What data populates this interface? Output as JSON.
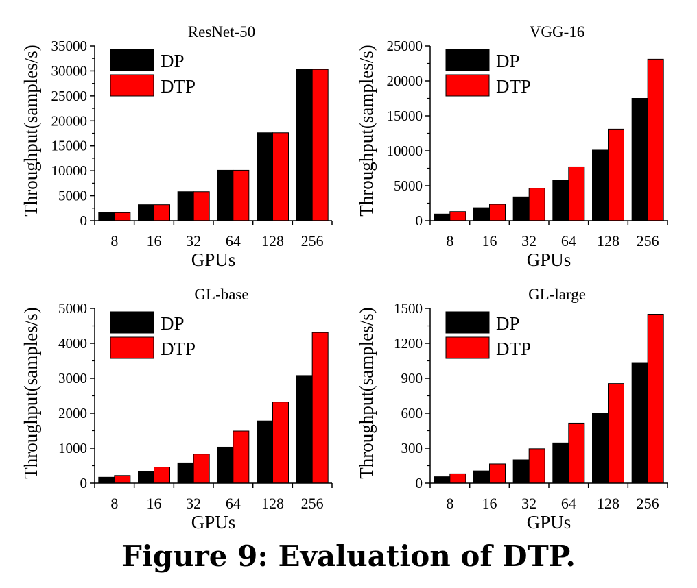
{
  "caption": "Figure 9: Evaluation of DTP.",
  "colors": {
    "DP": "#000000",
    "DTP": "#ff0000"
  },
  "chart_data": [
    {
      "type": "bar",
      "title": "ResNet-50",
      "xlabel": "GPUs",
      "ylabel": "Throughput(samples/s)",
      "categories": [
        "8",
        "16",
        "32",
        "64",
        "128",
        "256"
      ],
      "ylim": [
        0,
        35000
      ],
      "yticks": [
        0,
        5000,
        10000,
        15000,
        20000,
        25000,
        30000,
        35000
      ],
      "legend": "top-left",
      "series": [
        {
          "name": "DP",
          "values": [
            1600,
            3200,
            5800,
            10100,
            17600,
            30300
          ]
        },
        {
          "name": "DTP",
          "values": [
            1600,
            3200,
            5800,
            10100,
            17600,
            30300
          ]
        }
      ]
    },
    {
      "type": "bar",
      "title": "VGG-16",
      "xlabel": "GPUs",
      "ylabel": "Throughput(samples/s)",
      "categories": [
        "8",
        "16",
        "32",
        "64",
        "128",
        "256"
      ],
      "ylim": [
        0,
        25000
      ],
      "yticks": [
        0,
        5000,
        10000,
        15000,
        20000,
        25000
      ],
      "legend": "top-left",
      "series": [
        {
          "name": "DP",
          "values": [
            950,
            1850,
            3400,
            5800,
            10100,
            17500
          ]
        },
        {
          "name": "DTP",
          "values": [
            1300,
            2350,
            4650,
            7700,
            13100,
            23100
          ]
        }
      ]
    },
    {
      "type": "bar",
      "title": "GL-base",
      "xlabel": "GPUs",
      "ylabel": "Throughput(samples/s)",
      "categories": [
        "8",
        "16",
        "32",
        "64",
        "128",
        "256"
      ],
      "ylim": [
        0,
        5000
      ],
      "yticks": [
        0,
        1000,
        2000,
        3000,
        4000,
        5000
      ],
      "legend": "top-left",
      "series": [
        {
          "name": "DP",
          "values": [
            170,
            330,
            580,
            1030,
            1780,
            3080
          ]
        },
        {
          "name": "DTP",
          "values": [
            220,
            460,
            830,
            1490,
            2320,
            4310
          ]
        }
      ]
    },
    {
      "type": "bar",
      "title": "GL-large",
      "xlabel": "GPUs",
      "ylabel": "Throughput(samples/s)",
      "categories": [
        "8",
        "16",
        "32",
        "64",
        "128",
        "256"
      ],
      "ylim": [
        0,
        1500
      ],
      "yticks": [
        0,
        300,
        600,
        900,
        1200,
        1500
      ],
      "legend": "top-left",
      "series": [
        {
          "name": "DP",
          "values": [
            55,
            105,
            200,
            345,
            600,
            1035
          ]
        },
        {
          "name": "DTP",
          "values": [
            80,
            165,
            295,
            515,
            855,
            1450
          ]
        }
      ]
    }
  ]
}
